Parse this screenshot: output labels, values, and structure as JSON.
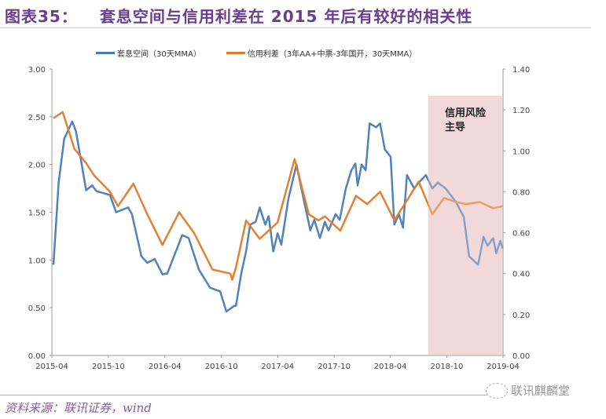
{
  "header": {
    "figure_number": "图表35：",
    "title": "套息空间与信用利差在 2015 年后有较好的相关性"
  },
  "footer": {
    "source": "资料来源：联讯证券，wind",
    "watermark": "联讯麒麟堂",
    "watermark_icon": "wechat-icon"
  },
  "chart_data": {
    "type": "line",
    "title": "",
    "xlabel": "",
    "ylabel": "",
    "legend_position": "top",
    "grid": false,
    "x_ticks": [
      "2015-04",
      "2015-10",
      "2016-04",
      "2016-10",
      "2017-04",
      "2017-10",
      "2018-04",
      "2018-10",
      "2019-04"
    ],
    "xlim": [
      "2015-04-01",
      "2019-04-01"
    ],
    "y_left": {
      "ylim": [
        0,
        3
      ],
      "ticks": [
        "0.00",
        "0.50",
        "1.00",
        "1.50",
        "2.00",
        "2.50",
        "3.00"
      ]
    },
    "y_right": {
      "ylim": [
        0,
        1.4
      ],
      "ticks": [
        "0.00",
        "0.20",
        "0.40",
        "0.60",
        "0.80",
        "1.00",
        "1.20",
        "1.40"
      ]
    },
    "shaded_region": {
      "start": "2018-08-01",
      "end": "2019-04-01",
      "label": "信用风险主导",
      "color": "#f2d9d9"
    },
    "series": [
      {
        "name": "套息空间（30天MMA）",
        "axis": "left",
        "color": "#4a7ab5",
        "points": [
          [
            "2015-04-06",
            0.95
          ],
          [
            "2015-04-23",
            1.81
          ],
          [
            "2015-05-11",
            2.27
          ],
          [
            "2015-06-06",
            2.45
          ],
          [
            "2015-06-18",
            2.35
          ],
          [
            "2015-07-04",
            2.05
          ],
          [
            "2015-07-21",
            1.73
          ],
          [
            "2015-08-09",
            1.78
          ],
          [
            "2015-08-24",
            1.72
          ],
          [
            "2015-10-06",
            1.68
          ],
          [
            "2015-10-26",
            1.5
          ],
          [
            "2015-12-04",
            1.55
          ],
          [
            "2015-12-16",
            1.48
          ],
          [
            "2016-01-16",
            1.04
          ],
          [
            "2016-02-04",
            0.97
          ],
          [
            "2016-02-28",
            1.01
          ],
          [
            "2016-03-24",
            0.85
          ],
          [
            "2016-04-09",
            0.86
          ],
          [
            "2016-05-27",
            1.26
          ],
          [
            "2016-06-17",
            1.23
          ],
          [
            "2016-07-20",
            0.9
          ],
          [
            "2016-08-25",
            0.71
          ],
          [
            "2016-09-27",
            0.67
          ],
          [
            "2016-10-17",
            0.46
          ],
          [
            "2016-11-12",
            0.52
          ],
          [
            "2016-11-17",
            0.52
          ],
          [
            "2016-12-05",
            0.87
          ],
          [
            "2016-12-20",
            1.09
          ],
          [
            "2017-01-02",
            1.37
          ],
          [
            "2017-01-20",
            1.4
          ],
          [
            "2017-02-02",
            1.55
          ],
          [
            "2017-02-20",
            1.37
          ],
          [
            "2017-03-03",
            1.46
          ],
          [
            "2017-03-18",
            1.09
          ],
          [
            "2017-04-01",
            1.28
          ],
          [
            "2017-04-13",
            1.16
          ],
          [
            "2017-05-06",
            1.64
          ],
          [
            "2017-06-01",
            2.0
          ],
          [
            "2017-06-26",
            1.61
          ],
          [
            "2017-07-16",
            1.31
          ],
          [
            "2017-07-29",
            1.42
          ],
          [
            "2017-08-16",
            1.23
          ],
          [
            "2017-09-01",
            1.4
          ],
          [
            "2017-09-13",
            1.31
          ],
          [
            "2017-10-06",
            1.48
          ],
          [
            "2017-10-19",
            1.42
          ],
          [
            "2017-11-08",
            1.75
          ],
          [
            "2017-11-26",
            1.94
          ],
          [
            "2017-12-09",
            2.01
          ],
          [
            "2017-12-16",
            1.78
          ],
          [
            "2017-12-29",
            2.0
          ],
          [
            "2018-01-11",
            1.94
          ],
          [
            "2018-01-24",
            2.43
          ],
          [
            "2018-02-14",
            2.39
          ],
          [
            "2018-02-27",
            2.43
          ],
          [
            "2018-03-14",
            2.16
          ],
          [
            "2018-04-02",
            2.08
          ],
          [
            "2018-04-14",
            1.37
          ],
          [
            "2018-04-29",
            1.48
          ],
          [
            "2018-05-12",
            1.34
          ],
          [
            "2018-05-25",
            1.89
          ],
          [
            "2018-06-17",
            1.75
          ],
          [
            "2018-07-02",
            1.81
          ],
          [
            "2018-07-25",
            1.89
          ],
          [
            "2018-08-15",
            1.75
          ],
          [
            "2018-09-02",
            1.81
          ],
          [
            "2018-09-27",
            1.75
          ],
          [
            "2018-10-30",
            1.61
          ],
          [
            "2018-11-25",
            1.45
          ],
          [
            "2018-12-12",
            1.04
          ],
          [
            "2019-01-10",
            0.95
          ],
          [
            "2019-01-28",
            1.24
          ],
          [
            "2019-02-10",
            1.15
          ],
          [
            "2019-02-28",
            1.23
          ],
          [
            "2019-03-10",
            1.07
          ],
          [
            "2019-03-23",
            1.2
          ],
          [
            "2019-03-31",
            1.12
          ]
        ]
      },
      {
        "name": "信用利差（3年AA+中票-3年国开，30天MMA）",
        "axis": "right",
        "color": "#e07a2a",
        "points": [
          [
            "2015-04-06",
            1.16
          ],
          [
            "2015-05-06",
            1.19
          ],
          [
            "2015-06-13",
            1.01
          ],
          [
            "2015-07-21",
            0.94
          ],
          [
            "2015-08-16",
            0.88
          ],
          [
            "2015-10-06",
            0.8
          ],
          [
            "2015-11-01",
            0.73
          ],
          [
            "2015-12-21",
            0.84
          ],
          [
            "2016-02-04",
            0.69
          ],
          [
            "2016-03-24",
            0.54
          ],
          [
            "2016-05-17",
            0.7
          ],
          [
            "2016-07-04",
            0.6
          ],
          [
            "2016-09-02",
            0.42
          ],
          [
            "2016-10-30",
            0.4
          ],
          [
            "2016-11-05",
            0.37
          ],
          [
            "2016-11-17",
            0.43
          ],
          [
            "2016-12-20",
            0.66
          ],
          [
            "2017-02-02",
            0.57
          ],
          [
            "2017-04-01",
            0.65
          ],
          [
            "2017-05-26",
            0.96
          ],
          [
            "2017-07-11",
            0.69
          ],
          [
            "2017-08-11",
            0.66
          ],
          [
            "2017-09-01",
            0.68
          ],
          [
            "2017-10-21",
            0.61
          ],
          [
            "2017-12-11",
            0.78
          ],
          [
            "2018-01-16",
            0.74
          ],
          [
            "2018-02-27",
            0.8
          ],
          [
            "2018-04-14",
            0.66
          ],
          [
            "2018-05-30",
            0.77
          ],
          [
            "2018-07-02",
            0.85
          ],
          [
            "2018-08-15",
            0.69
          ],
          [
            "2018-09-22",
            0.77
          ],
          [
            "2018-10-30",
            0.75
          ],
          [
            "2018-12-02",
            0.74
          ],
          [
            "2019-01-15",
            0.75
          ],
          [
            "2019-02-28",
            0.72
          ],
          [
            "2019-03-31",
            0.73
          ]
        ]
      }
    ]
  }
}
